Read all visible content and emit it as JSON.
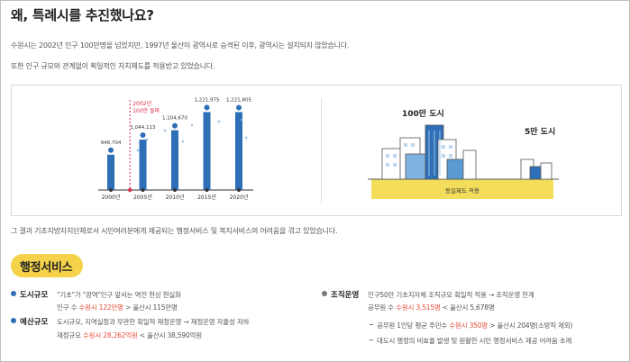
{
  "title": "왜, 특례시를 추진했나요?",
  "intro": {
    "line1": "수원시는 2002년 인구 100만명을 넘었지만, 1997년 울산이 광역시로 승격된 이후, 광역시는 설치되지 않았습니다.",
    "line2": "또한 인구 규모와 관계없이 획일적인 자치제도를 적용받고 있었습니다."
  },
  "chart_data": {
    "type": "bar",
    "categories": [
      "2000년",
      "2005년",
      "2010년",
      "2015년",
      "2020년"
    ],
    "values": [
      946704,
      1044113,
      1104670,
      1221975,
      1221805
    ],
    "value_labels": [
      "946,704",
      "1,044,113",
      "1,104,670",
      "1,221,975",
      "1,221,805"
    ],
    "annotation": "2002년\n100만 돌파",
    "annotation_line1": "2002년",
    "annotation_line2": "100만 돌파",
    "colors": {
      "bar": "#2e6fb7",
      "annotation": "#d9304f",
      "dots": "#7fb2de"
    }
  },
  "illustration": {
    "city_large": "100만 도시",
    "city_small": "5만 도시",
    "ground_label": "동일제도 적용",
    "ground_color": "#f5dd5c"
  },
  "result_text": "그 결과 기초지방자치단체로서 시민여러분에게 제공되는 행정서비스 및 복지서비스의 어려움을 겪고 있었습니다.",
  "section": {
    "title": "행정서비스",
    "pill_color": "#f6d24a"
  },
  "items": {
    "city_scale": {
      "label": "도시규모",
      "line1": "\"기초\"가 \"광역\"인구 앞서는 역전 현상 현실화",
      "line2_pre": "인구 수 ",
      "line2_em": "수원시 122만명",
      "line2_post": " > 울산시 115만명"
    },
    "budget": {
      "label": "예산규모",
      "line1": "도시규모, 지역실정과 무관한 획일적 재정운영 → 재정운영 자율성 저하",
      "line2_pre": "재정규모 ",
      "line2_em": "수원시 28,262억원",
      "line2_post": " < 울산시 38,590억원"
    },
    "org": {
      "label": "조직운영",
      "line1": "인구50만 기초지자체 조직규모 획일적 적용 → 조직운영 한계",
      "line2_pre": "공무원 수 ",
      "line2_em": "수원시 3,515명",
      "line2_post": " < 울산시 5,678명",
      "sub1_pre": "공무원 1인당 평균 주민수 ",
      "sub1_em": "수원시 350명",
      "sub1_post": " > 울산시 204명(소방직 제외)",
      "sub2": "대도시 행정의 비효율 발생 및 원활한 시민 행정서비스 제공 어려움 초래"
    }
  }
}
